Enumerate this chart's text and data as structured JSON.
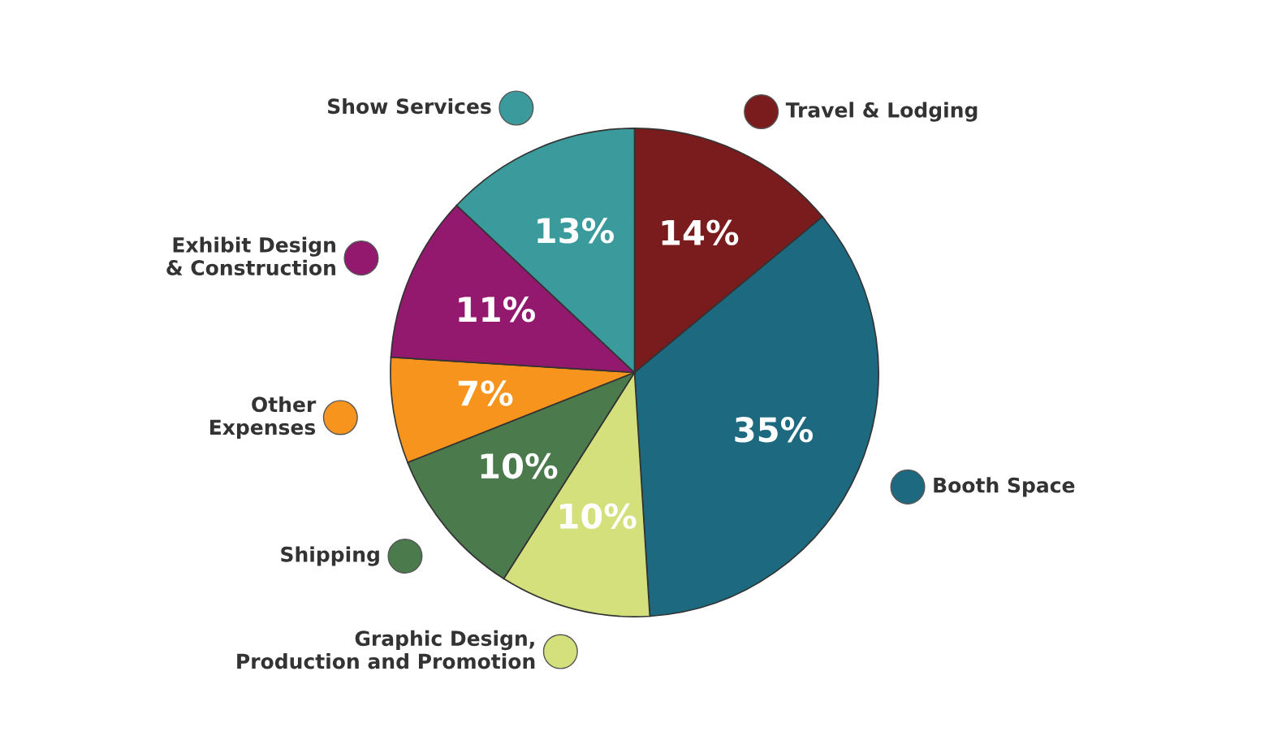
{
  "chart_data": {
    "type": "pie",
    "categories": [
      "Travel & Lodging",
      "Booth Space",
      "Graphic Design,\nProduction and Promotion",
      "Shipping",
      "Other\nExpenses",
      "Exhibit Design\n& Construction",
      "Show Services"
    ],
    "values": [
      14,
      35,
      10,
      10,
      7,
      11,
      13
    ],
    "value_labels": [
      "14%",
      "35%",
      "10%",
      "10%",
      "7%",
      "11%",
      "13%"
    ],
    "colors": [
      "#7a1b1e",
      "#1d6a80",
      "#d3e07c",
      "#4b7a4d",
      "#f7941e",
      "#93196f",
      "#3b9b9c"
    ],
    "legend": "left"
  }
}
